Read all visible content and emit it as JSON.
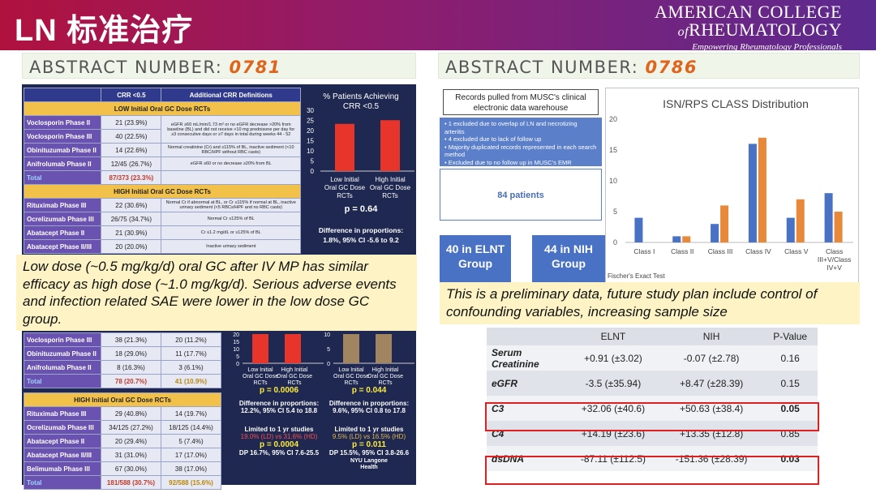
{
  "header": {
    "title": "LN 标准治疗",
    "org_line1": "AMERICAN COLLEGE",
    "org_line2_prefix": "of",
    "org_line2": "RHEUMATOLOGY",
    "org_tagline": "Empowering Rheumatology Professionals"
  },
  "colors": {
    "header_start": "#b0123e",
    "header_end": "#5a2a8f",
    "abstract_number": "#e0641c",
    "table_row_header": "#6a52b0",
    "section_band": "#f2c14a",
    "bar_red": "#e8352b",
    "bar_tan": "#a08560",
    "isn_elnt": "#4a72c4",
    "isn_nih": "#e8893a",
    "highlight": "#e02020"
  },
  "left": {
    "abstract_label": "ABSTRACT NUMBER: ",
    "abstract_number": "0781",
    "table_head": [
      "",
      "CRR <0.5",
      "Additional CRR Definitions"
    ],
    "section_low": "LOW Initial Oral GC Dose RCTs",
    "section_high": "HIGH Initial Oral GC Dose RCTs",
    "low_rows": [
      {
        "name": "Voclosporin Phase II",
        "crr": "21 (23.9%)",
        "def": "eGFR ≥60 mL/min/1.73 m² or no eGFR decrease >20% from baseline (BL) and did not receive >10 mg prednisone per day for ≥3 consecutive days or ≥7 days in total during weeks 44 - 52"
      },
      {
        "name": "Voclosporin Phase III",
        "crr": "40 (22.5%)",
        "def": ""
      },
      {
        "name": "Obinituzumab Phase II",
        "crr": "14 (22.6%)",
        "def": "Normal creatinine (Cr) and ≤115% of BL, inactive sediment (<10 RBC/HPF without RBC casts)"
      },
      {
        "name": "Anifrolumab Phase II",
        "crr": "12/45 (26.7%)",
        "def": "eGFR ≥60 or no decrease ≥20% from BL"
      }
    ],
    "low_total": {
      "name": "Total",
      "crr": "87/373 (23.3%)"
    },
    "high_rows": [
      {
        "name": "Rituximab Phase III",
        "crr": "22 (30.6%)",
        "def": "Normal Cr if abnormal at BL, or Cr ≤115% if normal at BL, inactive urinary sediment (<5 RBCs/HPF and no RBC casts)"
      },
      {
        "name": "Ocrelizumab Phase III",
        "crr": "26/75 (34.7%)",
        "def": "Normal Cr ≤125% of BL"
      },
      {
        "name": "Abatacept Phase II",
        "crr": "21 (30.9%)",
        "def": "Cr ≤1.2 mg/dL or ≤125% of BL"
      },
      {
        "name": "Abatacept Phase II/III",
        "crr": "20 (20.0%)",
        "def": "Inactive urinary sediment"
      }
    ],
    "chart1": {
      "title_line1": "% Patients Achieving",
      "title_line2": "CRR <0.5",
      "ticks": [
        "30",
        "25",
        "20",
        "15",
        "10",
        "5",
        "0"
      ],
      "cat1": "Low Initial Oral GC Dose RCTs",
      "cat2": "High Initial Oral GC Dose RCTs",
      "p": "p = 0.64",
      "diff1": "Difference in proportions:",
      "diff2": "1.8%, 95% CI -5.6 to 9.2"
    },
    "chart_data": [
      {
        "type": "bar",
        "title": "% Patients Achieving CRR <0.5",
        "categories": [
          "Low Initial Oral GC Dose RCTs",
          "High Initial Oral GC Dose RCTs"
        ],
        "values": [
          23.3,
          25.1
        ],
        "ylim": [
          0,
          30
        ]
      },
      {
        "type": "bar",
        "categories": [
          "Low Initial Oral GC Dose RCTs",
          "High Initial Oral GC Dose RCTs"
        ],
        "values": [
          20.7,
          30.7
        ],
        "ylim": [
          0,
          20
        ]
      },
      {
        "type": "bar",
        "categories": [
          "Low Initial Oral GC Dose RCTs",
          "High Initial Oral GC Dose RCTs"
        ],
        "values": [
          10.9,
          15.6
        ],
        "ylim": [
          0,
          10
        ]
      }
    ],
    "note": "Low dose (~0.5 mg/kg/d) oral GC after IV MP has similar efficacy as high dose (~1.0 mg/kg/d). Serious adverse events and infection related SAE were lower in the low dose GC group.",
    "t2_rows_top": [
      {
        "name": "Voclosporin Phase III",
        "a": "38 (21.3%)",
        "b": "20 (11.2%)"
      },
      {
        "name": "Obinituzumab Phase II",
        "a": "18 (29.0%)",
        "b": "11 (17.7%)"
      },
      {
        "name": "Anifrolumab Phase II",
        "a": "8 (16.3%)",
        "b": "3 (6.1%)"
      }
    ],
    "t2_total": {
      "name": "Total",
      "a": "78 (20.7%)",
      "b": "41 (10.9%)"
    },
    "t2_section": "HIGH Initial Oral GC Dose RCTs",
    "t2_rows_bottom": [
      {
        "name": "Rituximab Phase III",
        "a": "29 (40.8%)",
        "b": "14 (19.7%)"
      },
      {
        "name": "Ocrelizumab Phase III",
        "a": "34/125 (27.2%)",
        "b": "18/125 (14.4%)"
      },
      {
        "name": "Abatacept Phase II",
        "a": "20 (29.4%)",
        "b": "5 (7.4%)"
      },
      {
        "name": "Abatacept Phase II/III",
        "a": "31 (31.0%)",
        "b": "17 (17.0%)"
      },
      {
        "name": "Belimumab Phase III",
        "a": "67 (30.0%)",
        "b": "38 (17.0%)"
      }
    ],
    "t2_total2": {
      "name": "Total",
      "a": "181/588 (30.7%)",
      "b": "92/588 (15.6%)"
    },
    "mini2": {
      "ticks": [
        "20",
        "15",
        "10",
        "5",
        "0"
      ],
      "cat1": "Low Initial Oral GC Dose RCTs",
      "cat2": "High Initial Oral GC Dose RCTs",
      "p": "p = 0.0006",
      "d1": "Difference in proportions:",
      "d2": "12.2%, 95% CI 5.4 to 18.8",
      "l1": "Limited to 1 yr studies",
      "l2": "19.0% (LD) vs 31.6% (HD)",
      "p2": "p = 0.0004",
      "dp": "DP 16.7%, 95% CI 7.6-25.5"
    },
    "mini3": {
      "ticks": [
        "10",
        "5",
        "0"
      ],
      "cat1": "Low Initial Oral GC Dose RCTs",
      "cat2": "High Initial Oral GC Dose RCTs",
      "p": "p = 0.044",
      "d1": "Difference in proportions:",
      "d2": "9.6%, 95% CI 0.8 to 17.8",
      "l1": "Limited to 1 yr studies",
      "l2": "9.5% (LD) vs 16.5% (HD)",
      "p2": "p = 0.011",
      "dp": "DP 15.5%, 95% CI 3.8-26.6",
      "logo1": "NYU Langone",
      "logo2": "Health"
    }
  },
  "right": {
    "abstract_label": "ABSTRACT NUMBER: ",
    "abstract_number": "0786",
    "records": "Records pulled from MUSC's clinical electronic data warehouse",
    "exclusions": [
      "1 excluded due to overlap of LN and necrotizing arteritis",
      "4 excluded due to lack of follow up",
      "Majority duplicated records represented in each search method",
      "Excluded due to no follow up in MUSC's EMR"
    ],
    "patients": "84 patients",
    "group1": "40 in ELNT Group",
    "group2": "44 in NIH Group",
    "isn_chart": {
      "title": "ISN/RPS CLASS Distribution",
      "ticks": [
        "20",
        "15",
        "10",
        "5",
        "0"
      ],
      "footnote": "Fischer's Exact Test"
    },
    "isn_data": {
      "type": "bar",
      "title": "ISN/RPS CLASS Distribution",
      "categories": [
        "Class I",
        "Class II",
        "Class III",
        "Class IV",
        "Class V",
        "Class III+V/Class IV+V"
      ],
      "series": [
        {
          "values": [
            4,
            1,
            3,
            16,
            4,
            8
          ]
        },
        {
          "values": [
            0,
            1,
            6,
            17,
            7,
            5
          ]
        }
      ],
      "ylim": [
        0,
        20
      ]
    },
    "note": "This is a preliminary data, future study plan include control of confounding variables,  increasing sample size",
    "stat_head": [
      "",
      "ELNT",
      "NIH",
      "P-Value"
    ],
    "stat_rows": [
      {
        "label": "Serum Creatinine",
        "elnt": "+0.91 (±3.02)",
        "nih": "-0.07 (±2.78)",
        "p": "0.16"
      },
      {
        "label": "eGFR",
        "elnt": "-3.5 (±35.94)",
        "nih": "+8.47 (±28.39)",
        "p": "0.15"
      },
      {
        "label": "C3",
        "elnt": "+32.06 (±40.6)",
        "nih": "+50.63 (±38.4)",
        "p": "0.05"
      },
      {
        "label": "C4",
        "elnt": "+14.19 (±23.6)",
        "nih": "+13.35 (±12.8)",
        "p": "0.85"
      },
      {
        "label": "dsDNA",
        "elnt": "-87.11 (±112.5)",
        "nih": "-151.36 (±28.39)",
        "p": "0.03"
      }
    ]
  }
}
